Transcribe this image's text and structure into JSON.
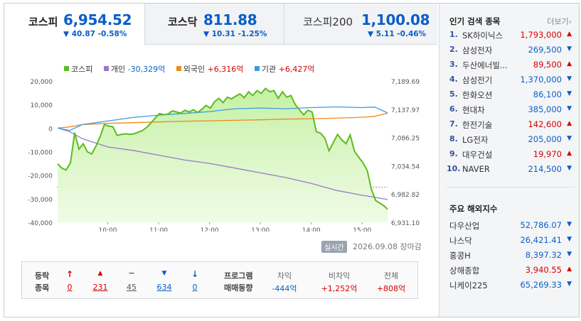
{
  "index_tabs": [
    {
      "name": "코스피",
      "value": "6,954.52",
      "change": "▼ 40.87 -0.58%",
      "active": true
    },
    {
      "name": "코스닥",
      "value": "811.88",
      "change": "▼ 10.31 -1.25%",
      "active": false
    },
    {
      "name": "코스피200",
      "value": "1,100.08",
      "change": "▼ 5.11 -0.46%",
      "active": false
    }
  ],
  "legend": {
    "kospi": "코스피",
    "individual": "개인",
    "individual_value": "-30,329억",
    "foreign": "외국인",
    "foreign_value": "+6,316억",
    "institution": "기관",
    "institution_value": "+6,427억"
  },
  "colors": {
    "kospi": "#5dbb20",
    "individual": "#9a79c6",
    "foreign": "#f08a1b",
    "institution": "#3a9ce0",
    "up": "#d60000",
    "down": "#0b5ec7"
  },
  "chart_data": {
    "type": "line",
    "title": "",
    "x_ticks": [
      "10:00",
      "11:00",
      "12:00",
      "13:00",
      "14:00",
      "15:00"
    ],
    "left_axis_ticks": [
      "20,000",
      "10,000",
      "0",
      "-10,000",
      "-20,000",
      "-30,000",
      "-40,000"
    ],
    "left_axis_range": [
      -40000,
      20000
    ],
    "right_axis_ticks": [
      "7,189.69",
      "7,137.97",
      "7,086.25",
      "7,034.54",
      "6,982.82",
      "6,931.10"
    ],
    "right_axis_range": [
      6931.1,
      7189.69
    ],
    "reference_line": 6995.39,
    "x_range": [
      "09:00",
      "15:30"
    ],
    "series": [
      {
        "name": "코스피",
        "axis": "right",
        "fill": "area",
        "points": [
          [
            "09:01",
            7038
          ],
          [
            "09:06",
            7030
          ],
          [
            "09:11",
            7027
          ],
          [
            "09:16",
            7040
          ],
          [
            "09:21",
            7095
          ],
          [
            "09:26",
            7065
          ],
          [
            "09:31",
            7075
          ],
          [
            "09:36",
            7060
          ],
          [
            "09:41",
            7056
          ],
          [
            "09:46",
            7070
          ],
          [
            "09:51",
            7088
          ],
          [
            "09:56",
            7110
          ],
          [
            "10:01",
            7107
          ],
          [
            "10:06",
            7106
          ],
          [
            "10:11",
            7090
          ],
          [
            "10:16",
            7092
          ],
          [
            "10:21",
            7093
          ],
          [
            "10:26",
            7092
          ],
          [
            "10:31",
            7093
          ],
          [
            "10:36",
            7096
          ],
          [
            "10:41",
            7099
          ],
          [
            "10:46",
            7105
          ],
          [
            "10:51",
            7113
          ],
          [
            "10:56",
            7122
          ],
          [
            "11:01",
            7130
          ],
          [
            "11:06",
            7128
          ],
          [
            "11:11",
            7129
          ],
          [
            "11:16",
            7135
          ],
          [
            "11:21",
            7133
          ],
          [
            "11:26",
            7131
          ],
          [
            "11:31",
            7136
          ],
          [
            "11:36",
            7133
          ],
          [
            "11:41",
            7137
          ],
          [
            "11:46",
            7132
          ],
          [
            "11:51",
            7138
          ],
          [
            "11:56",
            7145
          ],
          [
            "12:01",
            7140
          ],
          [
            "12:06",
            7152
          ],
          [
            "12:11",
            7158
          ],
          [
            "12:16",
            7150
          ],
          [
            "12:21",
            7160
          ],
          [
            "12:26",
            7157
          ],
          [
            "12:31",
            7162
          ],
          [
            "12:36",
            7166
          ],
          [
            "12:41",
            7159
          ],
          [
            "12:46",
            7170
          ],
          [
            "12:51",
            7163
          ],
          [
            "12:56",
            7172
          ],
          [
            "13:01",
            7167
          ],
          [
            "13:06",
            7176
          ],
          [
            "13:11",
            7170
          ],
          [
            "13:16",
            7172
          ],
          [
            "13:21",
            7158
          ],
          [
            "13:26",
            7170
          ],
          [
            "13:31",
            7160
          ],
          [
            "13:36",
            7163
          ],
          [
            "13:41",
            7147
          ],
          [
            "13:46",
            7137
          ],
          [
            "13:51",
            7128
          ],
          [
            "13:56",
            7136
          ],
          [
            "14:01",
            7133
          ],
          [
            "14:06",
            7097
          ],
          [
            "14:11",
            7094
          ],
          [
            "14:16",
            7085
          ],
          [
            "14:21",
            7062
          ],
          [
            "14:26",
            7077
          ],
          [
            "14:31",
            7092
          ],
          [
            "14:36",
            7082
          ],
          [
            "14:41",
            7075
          ],
          [
            "14:46",
            7091
          ],
          [
            "14:51",
            7061
          ],
          [
            "14:56",
            7050
          ],
          [
            "15:01",
            7040
          ],
          [
            "15:06",
            7026
          ],
          [
            "15:11",
            6991
          ],
          [
            "15:16",
            6971
          ],
          [
            "15:21",
            6966
          ],
          [
            "15:26",
            6961
          ],
          [
            "15:30",
            6955
          ]
        ]
      },
      {
        "name": "개인",
        "axis": "left",
        "points": [
          [
            "09:01",
            0
          ],
          [
            "09:15",
            -1500
          ],
          [
            "09:30",
            -4500
          ],
          [
            "10:00",
            -8000
          ],
          [
            "10:30",
            -9500
          ],
          [
            "11:00",
            -11500
          ],
          [
            "11:30",
            -13500
          ],
          [
            "12:00",
            -15000
          ],
          [
            "12:30",
            -17000
          ],
          [
            "13:00",
            -19000
          ],
          [
            "13:30",
            -21000
          ],
          [
            "14:00",
            -23500
          ],
          [
            "14:30",
            -26500
          ],
          [
            "15:00",
            -28500
          ],
          [
            "15:30",
            -30329
          ]
        ]
      },
      {
        "name": "외국인",
        "axis": "left",
        "points": [
          [
            "09:01",
            0
          ],
          [
            "09:15",
            500
          ],
          [
            "09:30",
            1500
          ],
          [
            "10:00",
            2000
          ],
          [
            "10:30",
            2300
          ],
          [
            "11:00",
            2600
          ],
          [
            "11:30",
            2900
          ],
          [
            "12:00",
            3100
          ],
          [
            "12:30",
            3300
          ],
          [
            "13:00",
            3500
          ],
          [
            "13:30",
            3800
          ],
          [
            "14:00",
            4000
          ],
          [
            "14:30",
            4200
          ],
          [
            "15:00",
            4600
          ],
          [
            "15:15",
            5000
          ],
          [
            "15:30",
            6316
          ]
        ]
      },
      {
        "name": "기관",
        "axis": "left",
        "points": [
          [
            "09:01",
            0
          ],
          [
            "09:15",
            -1000
          ],
          [
            "09:30",
            1500
          ],
          [
            "10:00",
            3000
          ],
          [
            "10:30",
            4500
          ],
          [
            "11:00",
            5500
          ],
          [
            "11:30",
            6200
          ],
          [
            "12:00",
            7000
          ],
          [
            "12:30",
            8200
          ],
          [
            "13:00",
            8500
          ],
          [
            "13:30",
            8200
          ],
          [
            "14:00",
            8700
          ],
          [
            "14:30",
            9000
          ],
          [
            "15:00",
            8700
          ],
          [
            "15:15",
            8900
          ],
          [
            "15:30",
            6427
          ]
        ]
      }
    ]
  },
  "chart_footer": {
    "tag": "실시간",
    "date": "2026.09.08 장마감"
  },
  "breadth": {
    "label_line1": "등락",
    "label_line2": "종목",
    "up_limit_icon": "limit-up-arrow",
    "up_limit": "0",
    "up": "231",
    "flat": "45",
    "down": "634",
    "down_limit_icon": "limit-down-arrow",
    "down_limit": "0"
  },
  "program": {
    "label_line1": "프로그램",
    "label_line2": "매매동향",
    "arb_label": "차익",
    "arb_value": "-444억",
    "nonarb_label": "비차익",
    "nonarb_value": "+1,252억",
    "total_label": "전체",
    "total_value": "+808억"
  },
  "popular": {
    "title": "인기 검색 종목",
    "more": "더보기",
    "items": [
      {
        "rank": "1.",
        "name": "SK하이닉스",
        "price": "1,793,000",
        "dir": "up"
      },
      {
        "rank": "2.",
        "name": "삼성전자",
        "price": "269,500",
        "dir": "down"
      },
      {
        "rank": "3.",
        "name": "두산에너빌...",
        "price": "89,500",
        "dir": "up"
      },
      {
        "rank": "4.",
        "name": "삼성전기",
        "price": "1,370,000",
        "dir": "down"
      },
      {
        "rank": "5.",
        "name": "한화오션",
        "price": "86,100",
        "dir": "down"
      },
      {
        "rank": "6.",
        "name": "현대차",
        "price": "385,000",
        "dir": "down"
      },
      {
        "rank": "7.",
        "name": "한전기술",
        "price": "142,600",
        "dir": "up"
      },
      {
        "rank": "8.",
        "name": "LG전자",
        "price": "205,000",
        "dir": "down"
      },
      {
        "rank": "9.",
        "name": "대우건설",
        "price": "19,970",
        "dir": "up"
      },
      {
        "rank": "10.",
        "name": "NAVER",
        "price": "214,500",
        "dir": "down"
      }
    ]
  },
  "global": {
    "title": "주요 해외지수",
    "items": [
      {
        "name": "다우산업",
        "value": "52,786.07",
        "dir": "down"
      },
      {
        "name": "나스닥",
        "value": "26,421.41",
        "dir": "down"
      },
      {
        "name": "홍콩H",
        "value": "8,397.32",
        "dir": "down"
      },
      {
        "name": "상해종합",
        "value": "3,940.55",
        "dir": "up"
      },
      {
        "name": "니케이225",
        "value": "65,269.33",
        "dir": "down"
      }
    ]
  }
}
